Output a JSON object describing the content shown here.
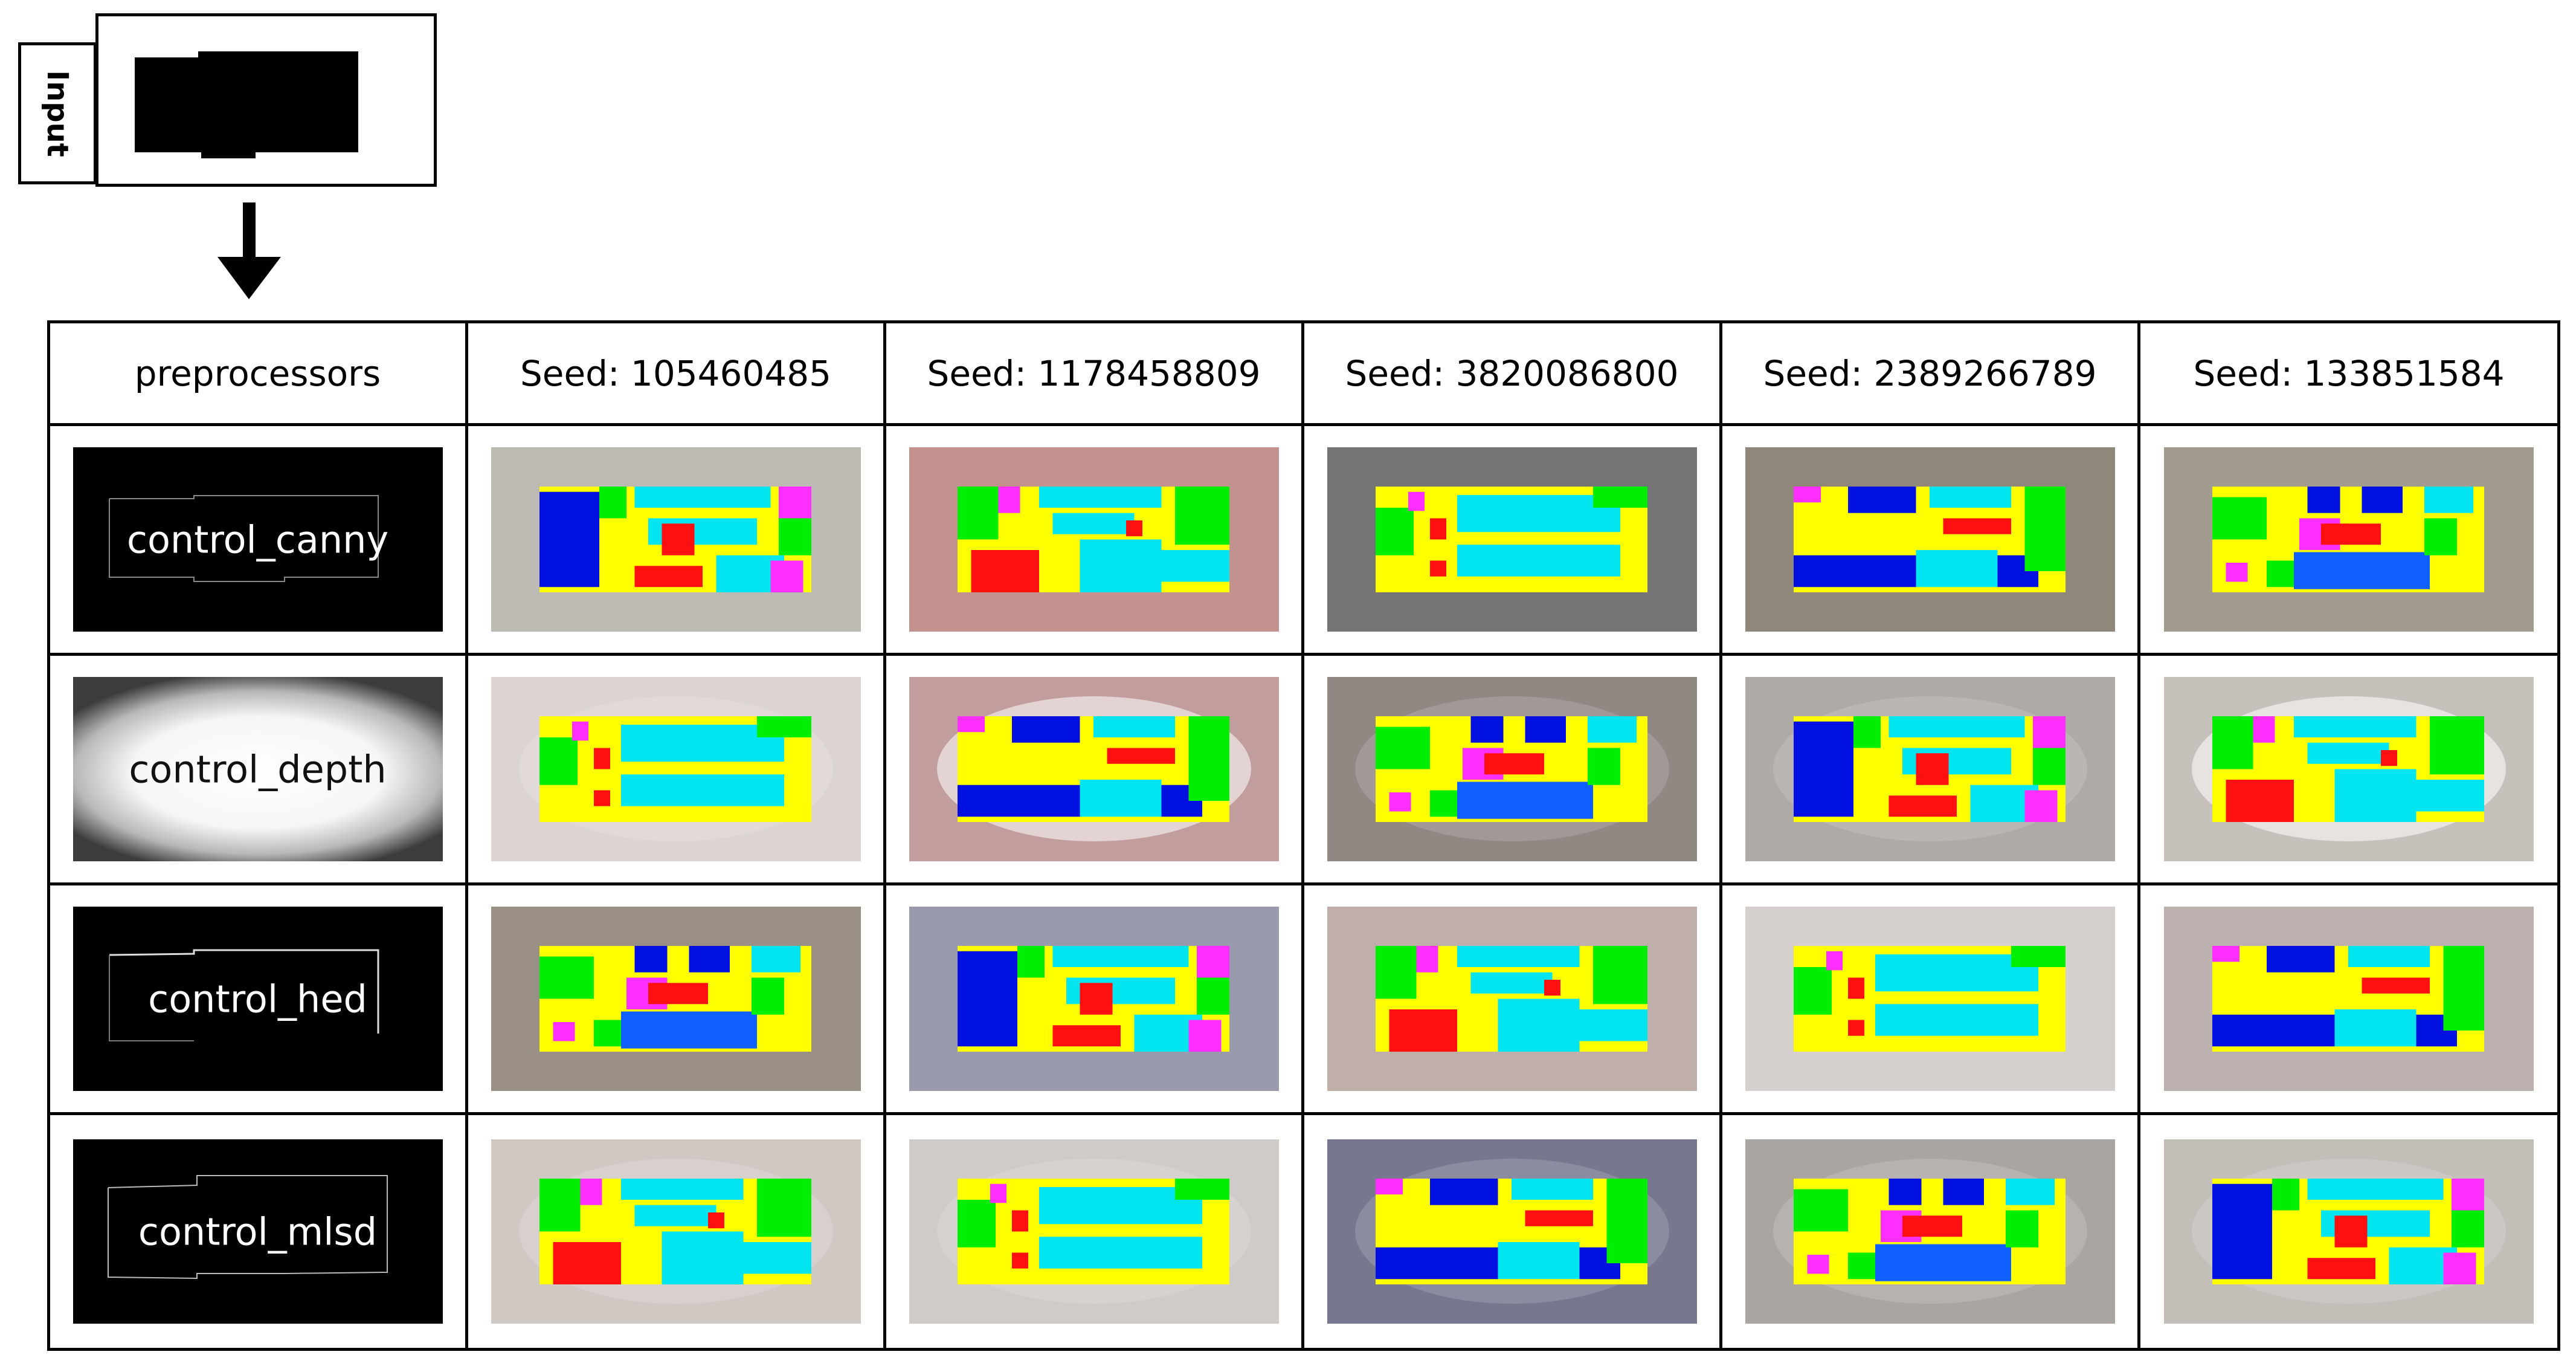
{
  "input": {
    "label": "Input"
  },
  "table": {
    "header": {
      "preprocessors": "preprocessors",
      "seeds": [
        "Seed: 105460485",
        "Seed: 1178458809",
        "Seed: 3820086800",
        "Seed: 2389266789",
        "Seed: 133851584"
      ]
    },
    "rows": [
      {
        "preprocessor": "control_canny",
        "backgrounds": [
          "#bdb9b3",
          "#c4928e",
          "#747474",
          "#8f877a",
          "#a19b90"
        ]
      },
      {
        "preprocessor": "control_depth",
        "backgrounds": [
          "#ddd3d3",
          "#c19d9d",
          "#908883",
          "#b0aaa7",
          "#c7c1bc"
        ]
      },
      {
        "preprocessor": "control_hed",
        "backgrounds": [
          "#9a9086",
          "#9a9aae",
          "#bfaeaa",
          "#d5cfcd",
          "#bcb1ae"
        ]
      },
      {
        "preprocessor": "control_mlsd",
        "backgrounds": [
          "#d0c8c3",
          "#cfcbc8",
          "#77788f",
          "#aaa5a1",
          "#c4beb8"
        ]
      }
    ]
  },
  "colors": {
    "yellow": "#ffff00",
    "cyan": "#00e5f0",
    "green": "#00ee00",
    "blue": "#0010e0",
    "red": "#ff1010",
    "magenta": "#ff30ff",
    "sky": "#1060ff"
  }
}
